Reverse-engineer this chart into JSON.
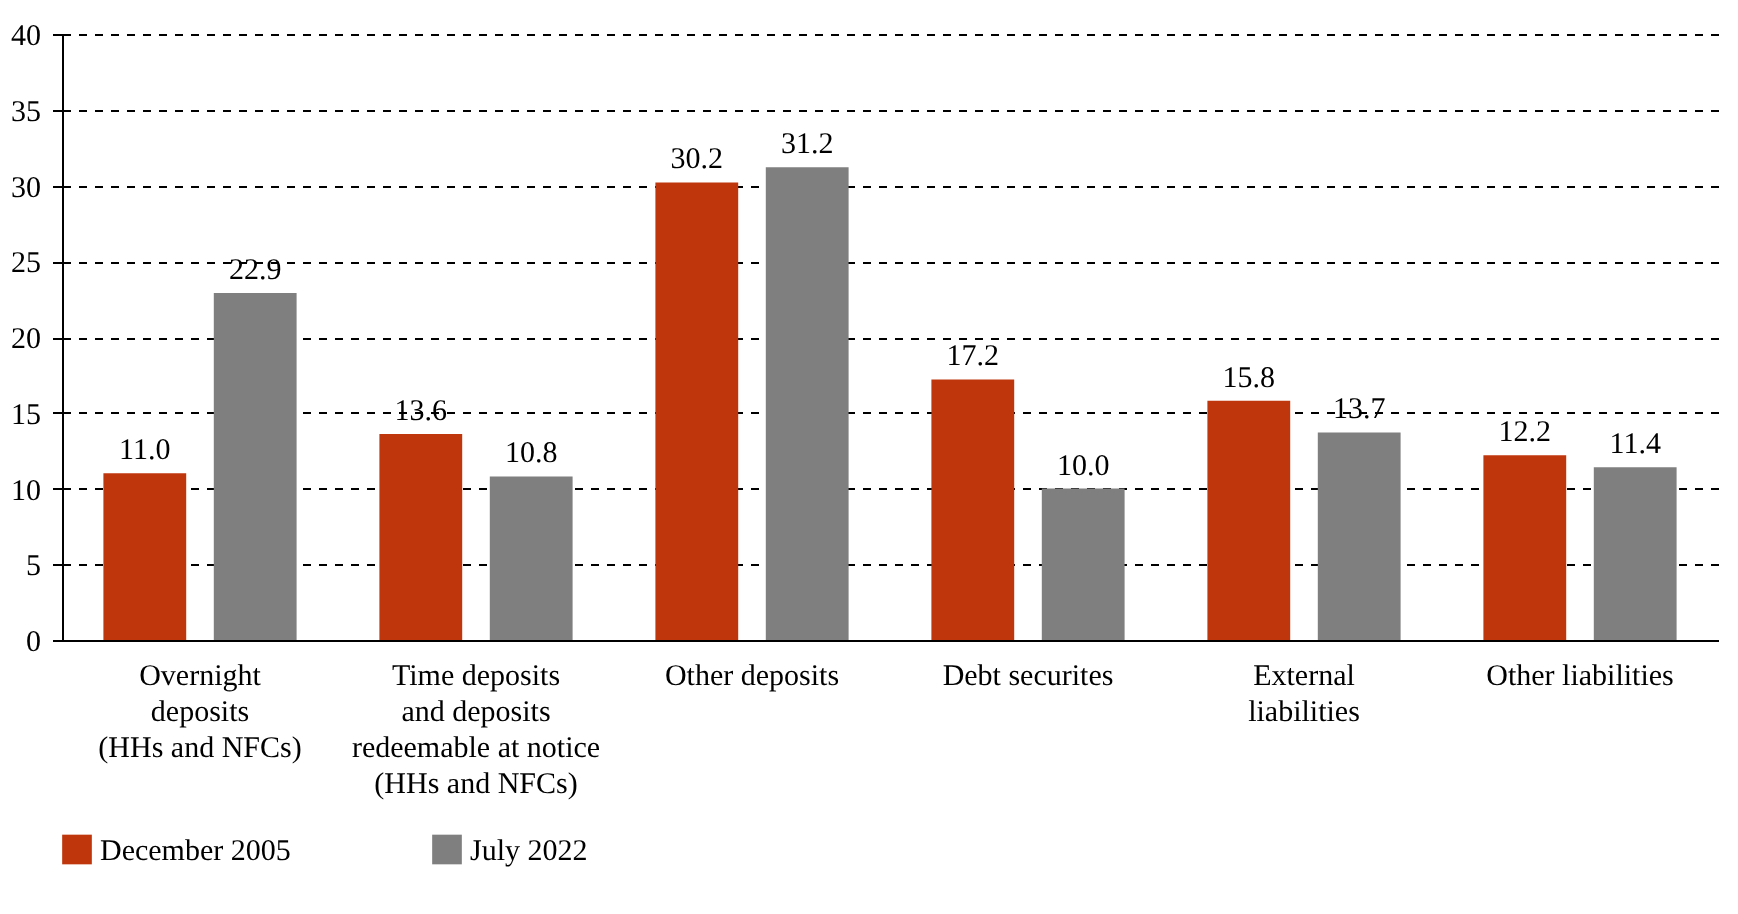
{
  "chart_data": {
    "type": "bar",
    "categories": [
      "Overnight\ndeposits\n(HHs and NFCs)",
      "Time deposits\nand deposits\nredeemable at notice\n(HHs and NFCs)",
      "Other deposits",
      "Debt securites",
      "External\nliabilities",
      "Other liabilities"
    ],
    "series": [
      {
        "name": "December 2005",
        "color": "#c0360c",
        "values": [
          11.0,
          13.6,
          30.2,
          17.2,
          15.8,
          12.2
        ],
        "value_labels": [
          "11.0",
          "13.6",
          "30.2",
          "17.2",
          "15.8",
          "12.2"
        ]
      },
      {
        "name": "July 2022",
        "color": "#7f7f7f",
        "values": [
          22.9,
          10.8,
          31.2,
          10.0,
          13.7,
          11.4
        ],
        "value_labels": [
          "22.9",
          "10.8",
          "31.2",
          "10.0",
          "13.7",
          "11.4"
        ]
      }
    ],
    "ylim": [
      0,
      40
    ],
    "yticks": [
      0,
      5,
      10,
      15,
      20,
      25,
      30,
      35,
      40
    ],
    "grid": "y",
    "legend": "bottom"
  }
}
